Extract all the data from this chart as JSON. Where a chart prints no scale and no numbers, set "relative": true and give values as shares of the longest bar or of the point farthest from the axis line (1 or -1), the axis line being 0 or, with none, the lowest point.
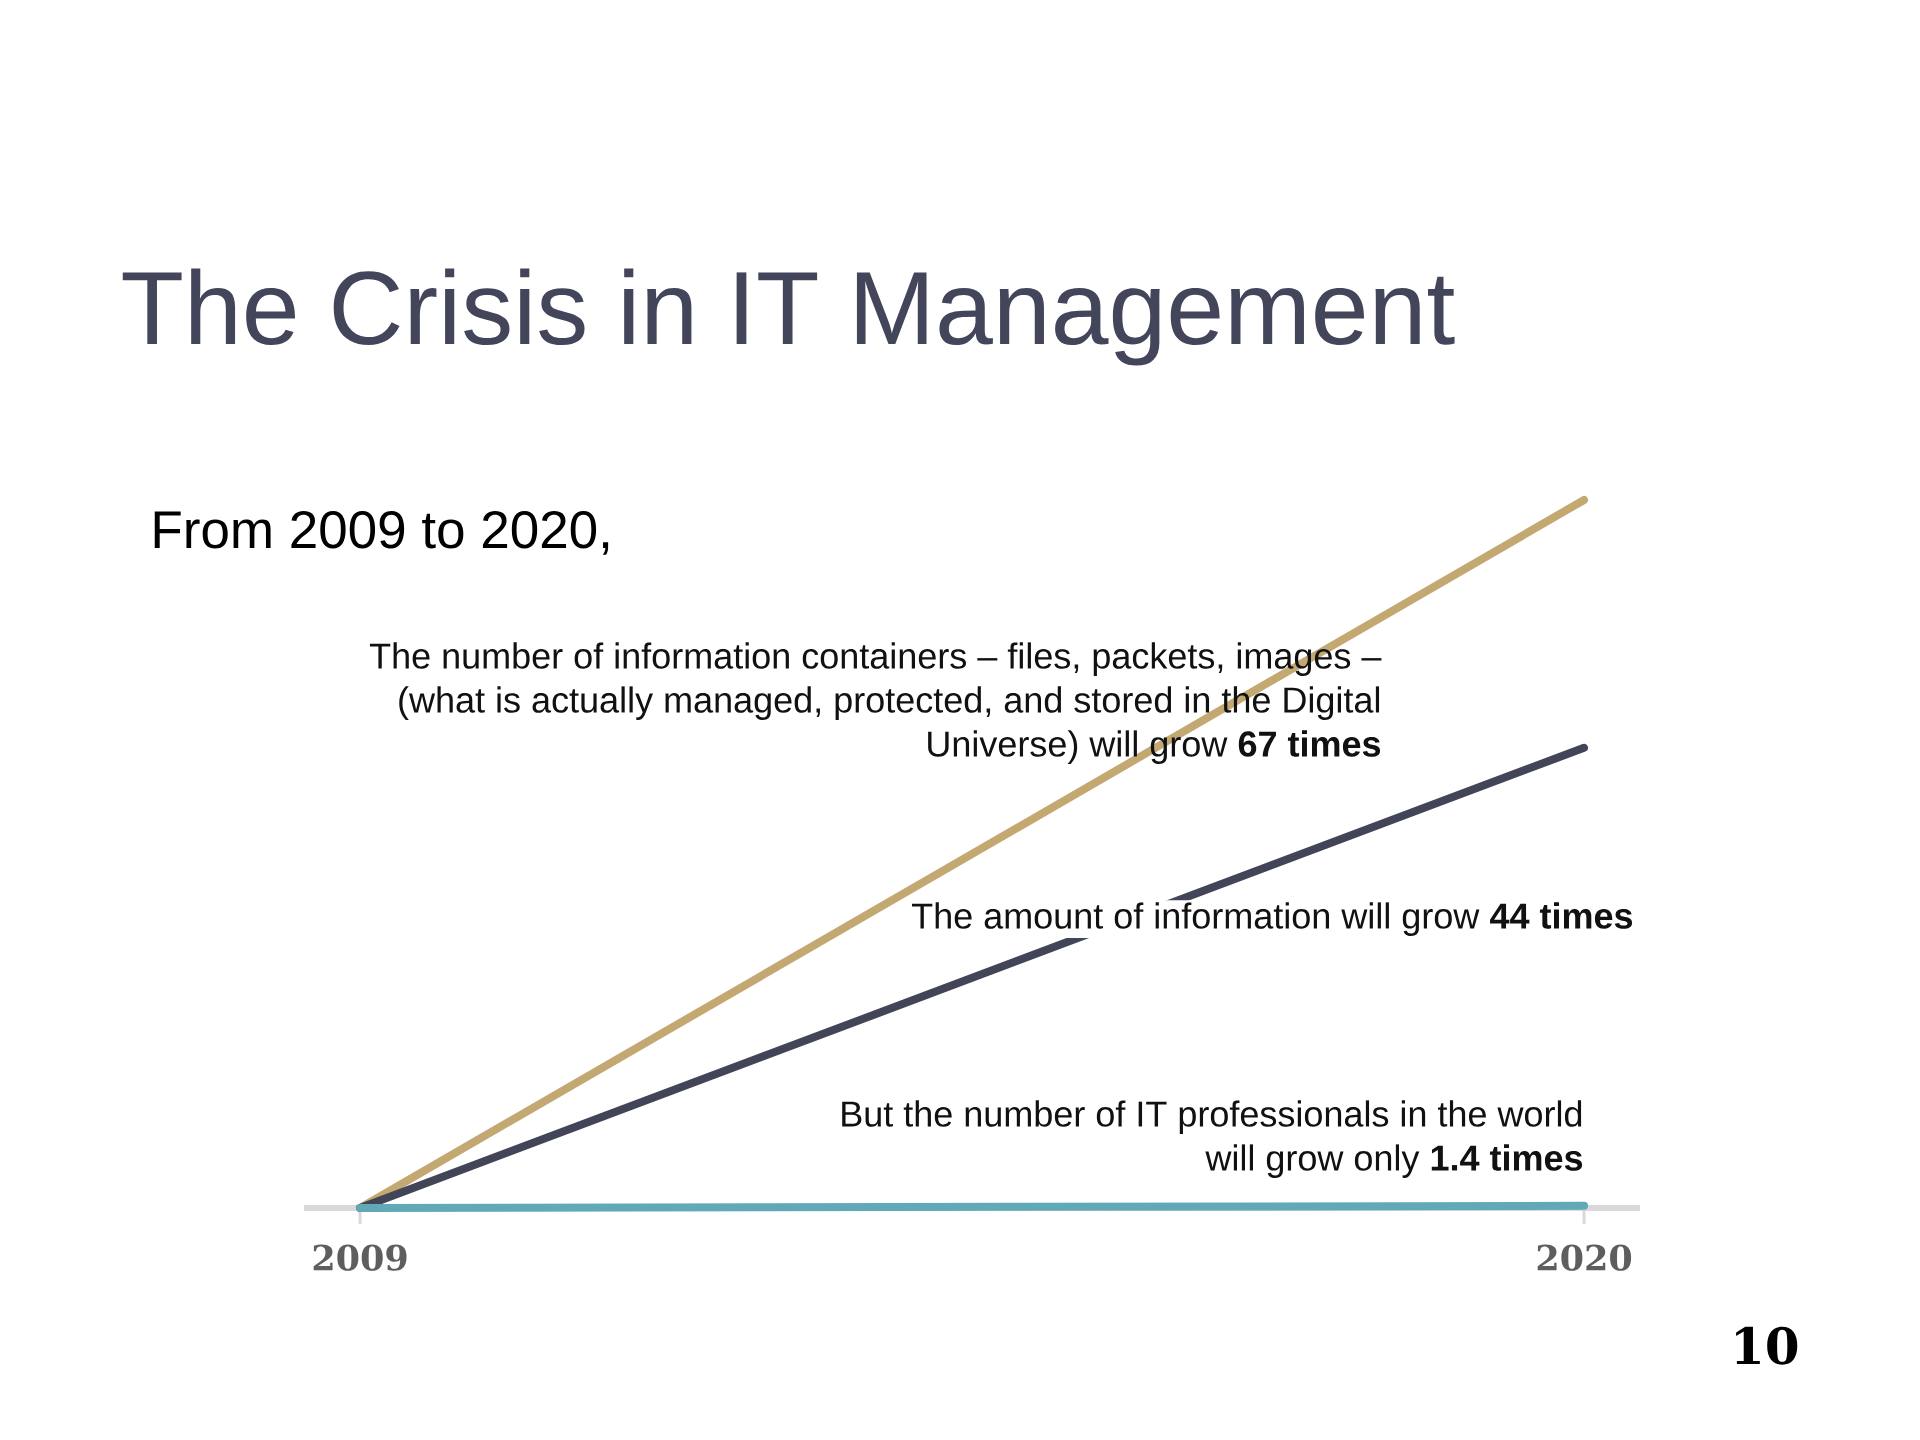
{
  "chart_data": {
    "type": "line",
    "title": "The Crisis in IT Management",
    "subtitle": "From 2009 to 2020,",
    "categories": [
      "2009",
      "2020"
    ],
    "relative": true,
    "series": [
      {
        "color": "#c4a872",
        "values": [
          0,
          1
        ]
      },
      {
        "color": "#424458",
        "values": [
          0,
          0.65
        ]
      },
      {
        "color": "#62a9b7",
        "values": [
          0,
          0.003
        ]
      }
    ],
    "annotations": [
      "The number of information containers – files, packets, images – (what is actually managed, protected, and stored in the Digital Universe) will grow **67 times**",
      "The amount of information will grow **44 times**",
      "But the number of IT professionals in the world will grow only **1.4 times**",
      "10"
    ]
  }
}
